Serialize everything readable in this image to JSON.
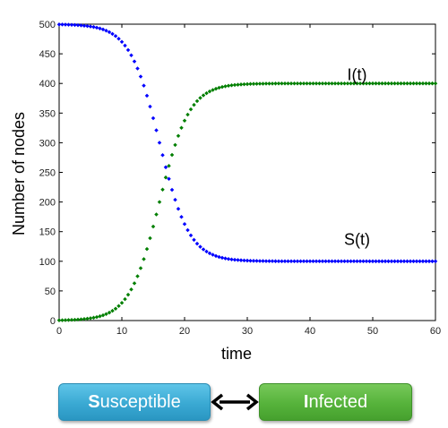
{
  "chart_data": {
    "type": "scatter",
    "xlabel": "time",
    "ylabel": "Number of nodes",
    "xlim": [
      0,
      60
    ],
    "ylim": [
      0,
      500
    ],
    "xticks": [
      0,
      10,
      20,
      30,
      40,
      50,
      60
    ],
    "yticks": [
      0,
      50,
      100,
      150,
      200,
      250,
      300,
      350,
      400,
      450,
      500
    ],
    "grid": false,
    "x_step": 0.5,
    "series": [
      {
        "name": "S(t)",
        "color": "#0000ff",
        "model": "logistic-decay",
        "start": 500,
        "end": 100,
        "midpoint": 16.0,
        "rate": 0.42
      },
      {
        "name": "I(t)",
        "color": "#007f00",
        "model": "logistic-growth",
        "start": 0,
        "end": 400,
        "midpoint": 16.0,
        "rate": 0.42
      }
    ],
    "annotations": [
      {
        "text": "I(t)",
        "x": 47.5,
        "y": 415
      },
      {
        "text": "S(t)",
        "x": 47.5,
        "y": 137
      }
    ]
  },
  "diagram": {
    "susceptible": {
      "first": "S",
      "rest": "usceptible",
      "color": "#3aa9d3"
    },
    "infected": {
      "first": "I",
      "rest": "nfected",
      "color": "#56b33b"
    },
    "connector": "double-arrow"
  }
}
